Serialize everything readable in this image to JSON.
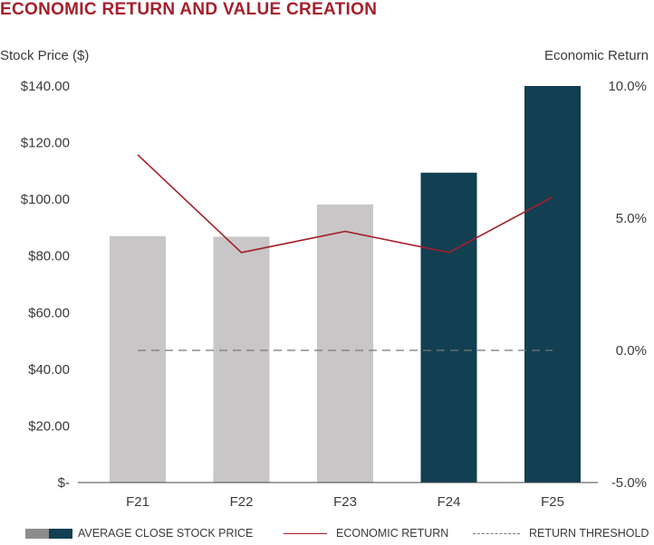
{
  "title": "ECONOMIC RETURN AND VALUE CREATION",
  "colors": {
    "title": "#a51f2b",
    "bar_past": "#c8c6c6",
    "bar_recent": "#123f52",
    "line": "#a51f2b",
    "threshold": "#777777",
    "axis": "#444444"
  },
  "legend": {
    "bars_label": "AVERAGE CLOSE STOCK PRICE",
    "line_label": "ECONOMIC RETURN",
    "threshold_label": "RETURN THRESHOLD"
  },
  "chart_data": {
    "type": "bar",
    "title": "ECONOMIC RETURN AND VALUE CREATION",
    "categories": [
      "F21",
      "F22",
      "F23",
      "F24",
      "F25"
    ],
    "left_axis": {
      "label": "Stock Price ($)",
      "min": 0,
      "max": 140,
      "step": 20,
      "tick_labels": [
        "$-",
        "$20.00",
        "$40.00",
        "$60.00",
        "$80.00",
        "$100.00",
        "$120.00",
        "$140.00"
      ]
    },
    "right_axis": {
      "label": "Economic Return",
      "min": -5,
      "max": 10,
      "step": 5,
      "tick_labels": [
        "-5.0%",
        "0.0%",
        "5.0%",
        "10.0%"
      ]
    },
    "series": [
      {
        "name": "AVERAGE CLOSE STOCK PRICE",
        "type": "bar",
        "axis": "left",
        "values": [
          87,
          86.8,
          98.2,
          109.4,
          140
        ],
        "highlight_from_index": 3
      },
      {
        "name": "ECONOMIC RETURN",
        "type": "line",
        "axis": "right",
        "values": [
          7.4,
          3.7,
          4.5,
          3.7,
          5.8
        ]
      },
      {
        "name": "RETURN THRESHOLD",
        "type": "line",
        "style": "dashed",
        "axis": "right",
        "values": [
          0,
          0,
          0,
          0,
          0
        ]
      }
    ]
  }
}
